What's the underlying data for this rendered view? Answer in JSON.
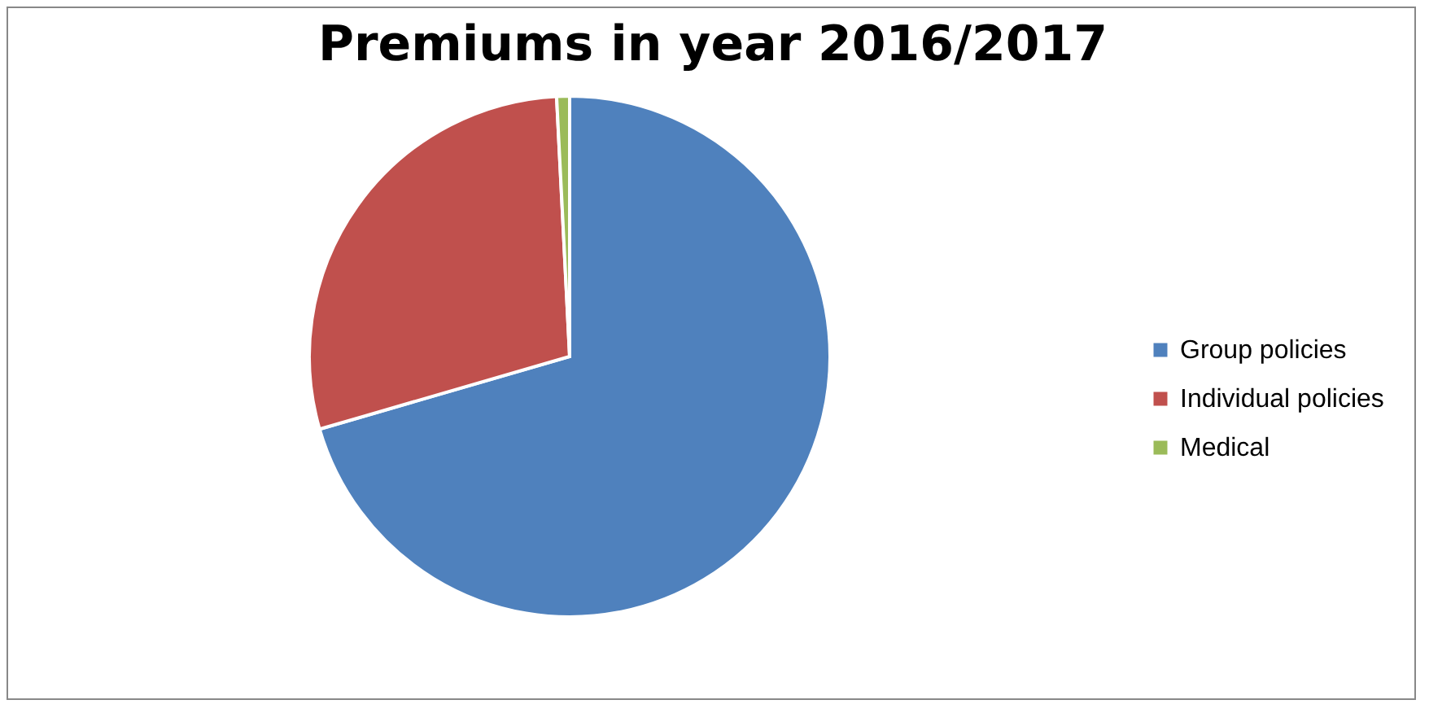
{
  "chart_data": {
    "type": "pie",
    "title": "Premiums in year 2016/2017",
    "categories": [
      "Group policies",
      "Individual policies",
      "Medical"
    ],
    "values": [
      70.5,
      28.7,
      0.8
    ],
    "colors": [
      "#4f81bd",
      "#c0504d",
      "#9bbb59"
    ],
    "legend": "right"
  }
}
